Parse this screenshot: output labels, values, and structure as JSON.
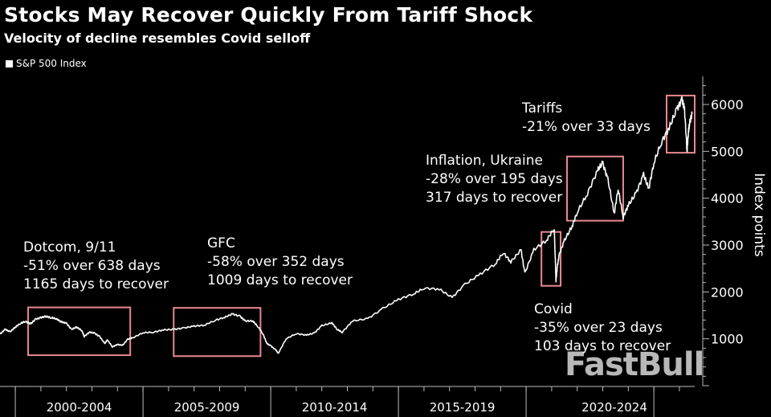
{
  "title": "Stocks May Recover Quickly From Tariff Shock",
  "subtitle": "Velocity of decline resembles Covid selloff",
  "legend": {
    "label": "S&P 500 Index",
    "color": "#ffffff"
  },
  "watermark": "FastBull",
  "colors": {
    "background": "#000000",
    "line": "#ffffff",
    "box": "#e8888f",
    "axis": "#bbbbbb"
  },
  "annotations": [
    {
      "id": "dotcom",
      "lines": [
        "Dotcom, 9/11",
        "-51% over 638 days",
        "1165 days to recover"
      ]
    },
    {
      "id": "gfc",
      "lines": [
        "GFC",
        "-58% over 352 days",
        "1009 days to recover"
      ]
    },
    {
      "id": "covid",
      "lines": [
        "Covid",
        "-35% over 23 days",
        "103 days to recover"
      ]
    },
    {
      "id": "inflation",
      "lines": [
        "Inflation, Ukraine",
        "-28% over 195 days",
        "317 days to recover"
      ]
    },
    {
      "id": "tariffs",
      "lines": [
        "Tariffs",
        "-21% over 33 days"
      ]
    }
  ],
  "chart_data": {
    "type": "line",
    "title": "Stocks May Recover Quickly From Tariff Shock",
    "subtitle": "Velocity of decline resembles Covid selloff",
    "ylabel": "Index points",
    "ylim": [
      0,
      6600
    ],
    "xlim": [
      1998.4,
      2025.6
    ],
    "y_ticks": [
      1000,
      2000,
      3000,
      4000,
      5000,
      6000
    ],
    "x_period_labels": [
      "2000-2004",
      "2005-2009",
      "2010-2014",
      "2015-2019",
      "2020-2024"
    ],
    "x_period_bounds": [
      1999.0,
      2004.0,
      2009.0,
      2014.0,
      2019.0,
      2024.0,
      2025.6
    ],
    "legend_position": "top-left",
    "grid": false,
    "series": [
      {
        "name": "S&P 500 Index",
        "x": [
          1998.4,
          1998.6,
          1998.8,
          1999.0,
          1999.2,
          1999.4,
          1999.6,
          1999.8,
          2000.0,
          2000.2,
          2000.4,
          2000.6,
          2000.8,
          2001.0,
          2001.2,
          2001.4,
          2001.6,
          2001.7,
          2001.9,
          2002.1,
          2002.3,
          2002.5,
          2002.6,
          2002.8,
          2003.0,
          2003.2,
          2003.4,
          2003.6,
          2004.0,
          2004.4,
          2004.8,
          2005.2,
          2005.6,
          2006.0,
          2006.4,
          2006.8,
          2007.2,
          2007.5,
          2007.8,
          2008.0,
          2008.3,
          2008.5,
          2008.7,
          2008.85,
          2009.0,
          2009.2,
          2009.3,
          2009.6,
          2010.0,
          2010.4,
          2010.7,
          2011.0,
          2011.4,
          2011.6,
          2011.8,
          2012.2,
          2012.8,
          2013.4,
          2014.0,
          2014.6,
          2015.0,
          2015.6,
          2016.1,
          2016.6,
          2017.2,
          2017.8,
          2018.1,
          2018.4,
          2018.8,
          2018.95,
          2019.3,
          2019.8,
          2020.1,
          2020.17,
          2020.22,
          2020.3,
          2020.5,
          2020.8,
          2021.0,
          2021.4,
          2021.8,
          2022.0,
          2022.2,
          2022.45,
          2022.6,
          2022.8,
          2023.0,
          2023.3,
          2023.6,
          2023.8,
          2024.0,
          2024.3,
          2024.6,
          2024.9,
          2025.1,
          2025.2,
          2025.3,
          2025.35,
          2025.4,
          2025.5
        ],
        "values": [
          1100,
          1200,
          1150,
          1250,
          1330,
          1370,
          1320,
          1420,
          1450,
          1480,
          1450,
          1430,
          1360,
          1330,
          1200,
          1250,
          1180,
          1050,
          1140,
          1120,
          1050,
          900,
          980,
          830,
          880,
          860,
          990,
          1020,
          1130,
          1140,
          1190,
          1200,
          1230,
          1270,
          1290,
          1390,
          1460,
          1530,
          1480,
          1380,
          1380,
          1260,
          1100,
          900,
          850,
          760,
          690,
          1000,
          1110,
          1080,
          1120,
          1280,
          1340,
          1200,
          1140,
          1380,
          1430,
          1650,
          1840,
          1960,
          2080,
          2060,
          1880,
          2160,
          2380,
          2600,
          2840,
          2640,
          2900,
          2400,
          2900,
          3100,
          3360,
          2240,
          2540,
          2800,
          3100,
          3400,
          3700,
          4100,
          4600,
          4750,
          4400,
          3670,
          4200,
          3600,
          3850,
          4100,
          4500,
          4200,
          4750,
          5200,
          5500,
          5900,
          6100,
          5900,
          5000,
          5400,
          5600,
          5800
        ]
      }
    ]
  }
}
